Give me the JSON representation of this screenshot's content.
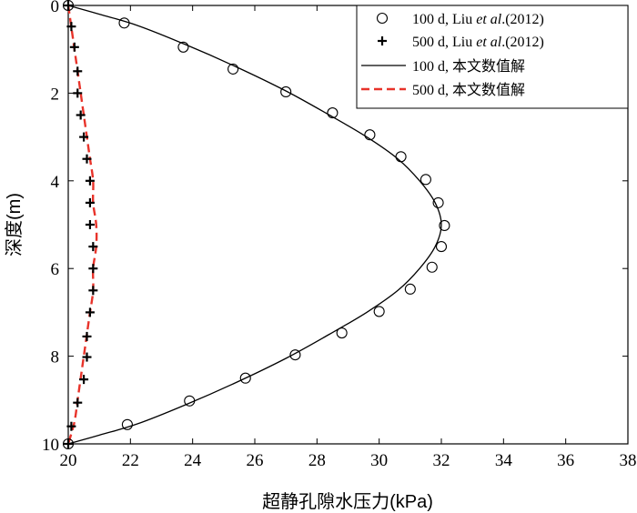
{
  "chart_data": {
    "type": "scatter",
    "xlabel": "超静孔隙水压力(kPa)",
    "ylabel": "深度(m)",
    "xlim": [
      20,
      38
    ],
    "ylim": [
      10,
      0
    ],
    "y_axis_direction": "inverted",
    "x_ticks": [
      "20",
      "22",
      "24",
      "26",
      "28",
      "30",
      "32",
      "34",
      "36",
      "38"
    ],
    "y_ticks": [
      "0",
      "2",
      "4",
      "6",
      "8",
      "10"
    ],
    "grid": false,
    "legend_position": "top-right",
    "series": [
      {
        "name": "100 d, Liu et al.(2012)",
        "name_parts": [
          "100 d, Liu ",
          "et al",
          ".(2012)"
        ],
        "style": "circle-marker",
        "color": "#000000",
        "points": [
          {
            "x": 20.0,
            "y": 0.0
          },
          {
            "x": 21.8,
            "y": 0.4
          },
          {
            "x": 23.7,
            "y": 0.95
          },
          {
            "x": 25.3,
            "y": 1.45
          },
          {
            "x": 27.0,
            "y": 1.97
          },
          {
            "x": 28.5,
            "y": 2.45
          },
          {
            "x": 29.7,
            "y": 2.95
          },
          {
            "x": 30.7,
            "y": 3.45
          },
          {
            "x": 31.5,
            "y": 3.97
          },
          {
            "x": 31.9,
            "y": 4.5
          },
          {
            "x": 32.1,
            "y": 5.02
          },
          {
            "x": 32.0,
            "y": 5.5
          },
          {
            "x": 31.7,
            "y": 5.97
          },
          {
            "x": 31.0,
            "y": 6.47
          },
          {
            "x": 30.0,
            "y": 6.98
          },
          {
            "x": 28.8,
            "y": 7.47
          },
          {
            "x": 27.3,
            "y": 7.97
          },
          {
            "x": 25.7,
            "y": 8.5
          },
          {
            "x": 23.9,
            "y": 9.02
          },
          {
            "x": 21.9,
            "y": 9.56
          },
          {
            "x": 20.0,
            "y": 10.0
          }
        ]
      },
      {
        "name": "500 d, Liu et al.(2012)",
        "name_parts": [
          "500 d, Liu ",
          "et al",
          ".(2012)"
        ],
        "style": "plus-marker",
        "color": "#000000",
        "points": [
          {
            "x": 20.0,
            "y": 0.0
          },
          {
            "x": 20.1,
            "y": 0.48
          },
          {
            "x": 20.2,
            "y": 0.95
          },
          {
            "x": 20.3,
            "y": 1.5
          },
          {
            "x": 20.3,
            "y": 2.0
          },
          {
            "x": 20.4,
            "y": 2.5
          },
          {
            "x": 20.5,
            "y": 3.0
          },
          {
            "x": 20.6,
            "y": 3.5
          },
          {
            "x": 20.7,
            "y": 4.0
          },
          {
            "x": 20.7,
            "y": 4.5
          },
          {
            "x": 20.7,
            "y": 5.0
          },
          {
            "x": 20.8,
            "y": 5.5
          },
          {
            "x": 20.8,
            "y": 6.0
          },
          {
            "x": 20.8,
            "y": 6.5
          },
          {
            "x": 20.7,
            "y": 7.0
          },
          {
            "x": 20.6,
            "y": 7.55
          },
          {
            "x": 20.6,
            "y": 8.02
          },
          {
            "x": 20.5,
            "y": 8.53
          },
          {
            "x": 20.3,
            "y": 9.06
          },
          {
            "x": 20.1,
            "y": 9.6
          },
          {
            "x": 20.0,
            "y": 10.0
          }
        ]
      },
      {
        "name": "100 d, 本文数值解",
        "style": "solid-line",
        "color": "#000000",
        "points": [
          {
            "x": 20.0,
            "y": 0.0
          },
          {
            "x": 21.0,
            "y": 0.2
          },
          {
            "x": 22.2,
            "y": 0.45
          },
          {
            "x": 23.8,
            "y": 0.9
          },
          {
            "x": 25.4,
            "y": 1.4
          },
          {
            "x": 27.0,
            "y": 1.95
          },
          {
            "x": 28.4,
            "y": 2.5
          },
          {
            "x": 29.6,
            "y": 3.0
          },
          {
            "x": 30.6,
            "y": 3.5
          },
          {
            "x": 31.3,
            "y": 4.0
          },
          {
            "x": 31.8,
            "y": 4.5
          },
          {
            "x": 32.0,
            "y": 5.0
          },
          {
            "x": 31.8,
            "y": 5.5
          },
          {
            "x": 31.3,
            "y": 6.0
          },
          {
            "x": 30.6,
            "y": 6.5
          },
          {
            "x": 29.6,
            "y": 7.0
          },
          {
            "x": 28.4,
            "y": 7.5
          },
          {
            "x": 27.0,
            "y": 8.05
          },
          {
            "x": 25.4,
            "y": 8.6
          },
          {
            "x": 23.8,
            "y": 9.1
          },
          {
            "x": 22.2,
            "y": 9.55
          },
          {
            "x": 21.0,
            "y": 9.8
          },
          {
            "x": 20.0,
            "y": 10.0
          }
        ]
      },
      {
        "name": "500 d, 本文数值解",
        "style": "dashed-line",
        "color": "#e8332a",
        "points": [
          {
            "x": 20.0,
            "y": 0.0
          },
          {
            "x": 20.1,
            "y": 0.5
          },
          {
            "x": 20.2,
            "y": 1.0
          },
          {
            "x": 20.3,
            "y": 1.5
          },
          {
            "x": 20.4,
            "y": 2.0
          },
          {
            "x": 20.5,
            "y": 2.5
          },
          {
            "x": 20.6,
            "y": 3.0
          },
          {
            "x": 20.7,
            "y": 3.5
          },
          {
            "x": 20.8,
            "y": 4.0
          },
          {
            "x": 20.8,
            "y": 4.5
          },
          {
            "x": 20.9,
            "y": 5.0
          },
          {
            "x": 20.9,
            "y": 5.5
          },
          {
            "x": 20.8,
            "y": 6.0
          },
          {
            "x": 20.8,
            "y": 6.5
          },
          {
            "x": 20.7,
            "y": 7.0
          },
          {
            "x": 20.6,
            "y": 7.5
          },
          {
            "x": 20.5,
            "y": 8.0
          },
          {
            "x": 20.4,
            "y": 8.5
          },
          {
            "x": 20.3,
            "y": 9.0
          },
          {
            "x": 20.2,
            "y": 9.5
          },
          {
            "x": 20.0,
            "y": 10.0
          }
        ]
      }
    ]
  }
}
